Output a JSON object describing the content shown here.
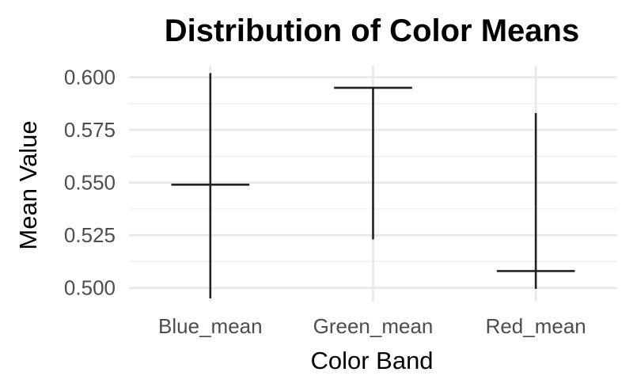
{
  "chart_data": {
    "type": "boxplot",
    "title": "Distribution of Color Means",
    "xlabel": "Color Band",
    "ylabel": "Mean Value",
    "categories": [
      "Blue_mean",
      "Green_mean",
      "Red_mean"
    ],
    "ylim": [
      0.4935,
      0.6055
    ],
    "yticks": [
      "0.500",
      "0.525",
      "0.550",
      "0.575",
      "0.600"
    ],
    "grid": true,
    "series": [
      {
        "category": "Blue_mean",
        "min": 0.495,
        "max": 0.602,
        "median": 0.549
      },
      {
        "category": "Green_mean",
        "min": 0.523,
        "max": 0.595,
        "median": 0.595
      },
      {
        "category": "Red_mean",
        "min": 0.4995,
        "max": 0.583,
        "median": 0.508
      }
    ]
  }
}
